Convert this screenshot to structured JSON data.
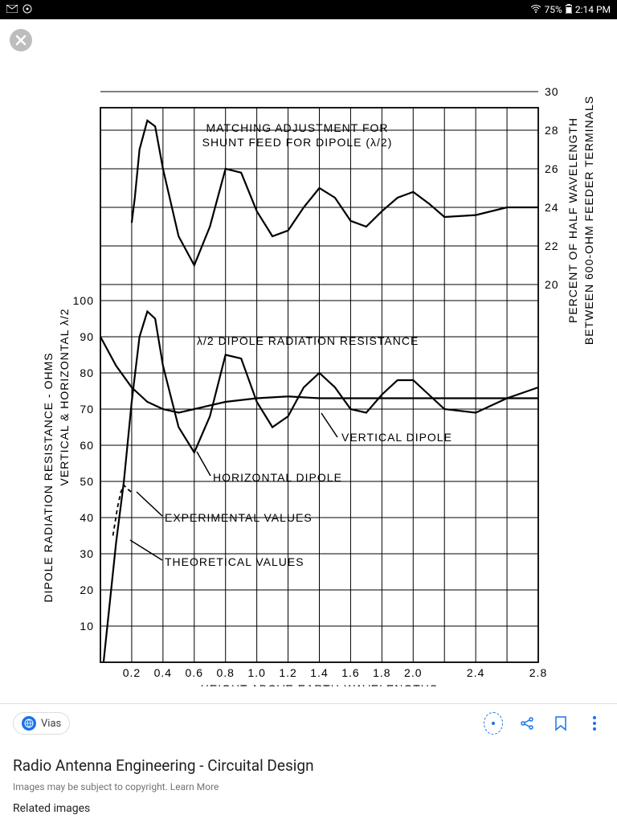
{
  "status": {
    "battery_pct": "75%",
    "time": "2:14 PM"
  },
  "chart": {
    "type": "line",
    "title_line1": "MATCHING  ADJUSTMENT  FOR",
    "title_line2": "SHUNT  FEED  FOR  DIPOLE  (λ/2)",
    "left_axis_label": "DIPOLE RADIATION RESISTANCE - OHMS",
    "left_axis_label2": "VERTICAL & HORIZONTAL λ/2",
    "right_axis_label1": "PERCENT  OF  HALF  WAVELENGTH",
    "right_axis_label2": "BETWEEN  600-OHM  FEEDER  TERMINALS",
    "x_axis_label": "HEIGHT ABOVE EARTH-WAVELENGTHS",
    "x_ticks": [
      "0.2",
      "0.4",
      "0.6",
      "0.8",
      "1.0",
      "1.2",
      "1.4",
      "1.6",
      "1.8",
      "2.0",
      "2.4",
      "2.8"
    ],
    "left_y_ticks": [
      "10",
      "20",
      "30",
      "40",
      "50",
      "60",
      "70",
      "80",
      "90",
      "100"
    ],
    "right_y_ticks": [
      "20",
      "22",
      "24",
      "26",
      "28",
      "30"
    ],
    "annotations": {
      "dipole_rad": "λ/2  DIPOLE  RADIATION  RESISTANCE",
      "vertical": "VERTICAL  DIPOLE",
      "horizontal": "HORIZONTAL  DIPOLE",
      "experimental": "EXPERIMENTAL  VALUES",
      "theoretical": "THEORETICAL  VALUES"
    },
    "colors": {
      "line": "#000000",
      "grid": "#000000",
      "bg": "#ffffff"
    },
    "line_width": 2.2,
    "grid_width": 1,
    "upper_curve": [
      [
        0.2,
        23.2
      ],
      [
        0.22,
        24.5
      ],
      [
        0.25,
        27
      ],
      [
        0.3,
        28.5
      ],
      [
        0.35,
        28.2
      ],
      [
        0.4,
        26
      ],
      [
        0.5,
        22.5
      ],
      [
        0.6,
        21
      ],
      [
        0.7,
        23
      ],
      [
        0.8,
        26
      ],
      [
        0.9,
        25.8
      ],
      [
        1.0,
        23.8
      ],
      [
        1.1,
        22.5
      ],
      [
        1.2,
        22.8
      ],
      [
        1.3,
        24
      ],
      [
        1.4,
        25
      ],
      [
        1.5,
        24.5
      ],
      [
        1.6,
        23.3
      ],
      [
        1.7,
        23
      ],
      [
        1.8,
        23.8
      ],
      [
        1.9,
        24.5
      ],
      [
        2.0,
        24.8
      ],
      [
        2.1,
        24.2
      ],
      [
        2.2,
        23.5
      ],
      [
        2.4,
        23.6
      ],
      [
        2.6,
        24
      ],
      [
        2.8,
        24
      ]
    ],
    "horizontal_dipole": [
      [
        0.02,
        0
      ],
      [
        0.1,
        33
      ],
      [
        0.15,
        50
      ],
      [
        0.2,
        72
      ],
      [
        0.25,
        90
      ],
      [
        0.3,
        97
      ],
      [
        0.35,
        95
      ],
      [
        0.4,
        82
      ],
      [
        0.5,
        65
      ],
      [
        0.6,
        58
      ],
      [
        0.7,
        68
      ],
      [
        0.8,
        85
      ],
      [
        0.9,
        84
      ],
      [
        1.0,
        72
      ],
      [
        1.1,
        65
      ],
      [
        1.2,
        68
      ],
      [
        1.3,
        76
      ],
      [
        1.4,
        80
      ],
      [
        1.5,
        76
      ],
      [
        1.6,
        70
      ],
      [
        1.7,
        69
      ],
      [
        1.8,
        74
      ],
      [
        1.9,
        78
      ],
      [
        2.0,
        78
      ],
      [
        2.1,
        74
      ],
      [
        2.2,
        70
      ],
      [
        2.4,
        69
      ],
      [
        2.6,
        73
      ],
      [
        2.8,
        76
      ]
    ],
    "vertical_dipole": [
      [
        0.0,
        90
      ],
      [
        0.1,
        82
      ],
      [
        0.2,
        76
      ],
      [
        0.3,
        72
      ],
      [
        0.4,
        70
      ],
      [
        0.5,
        69
      ],
      [
        0.6,
        70
      ],
      [
        0.8,
        72
      ],
      [
        1.0,
        73
      ],
      [
        1.2,
        73.5
      ],
      [
        1.4,
        73
      ],
      [
        1.6,
        73
      ],
      [
        1.8,
        73
      ],
      [
        2.0,
        73
      ],
      [
        2.4,
        73
      ],
      [
        2.8,
        73
      ]
    ],
    "experimental": [
      [
        0.08,
        35
      ],
      [
        0.11,
        43
      ],
      [
        0.13,
        47
      ],
      [
        0.15,
        49
      ],
      [
        0.17,
        48
      ],
      [
        0.2,
        47
      ]
    ]
  },
  "footer": {
    "source_name": "Vias",
    "page_title": "Radio Antenna Engineering - Circuital Design",
    "copyright": "Images may be subject to copyright. Learn More",
    "related": "Related images"
  }
}
